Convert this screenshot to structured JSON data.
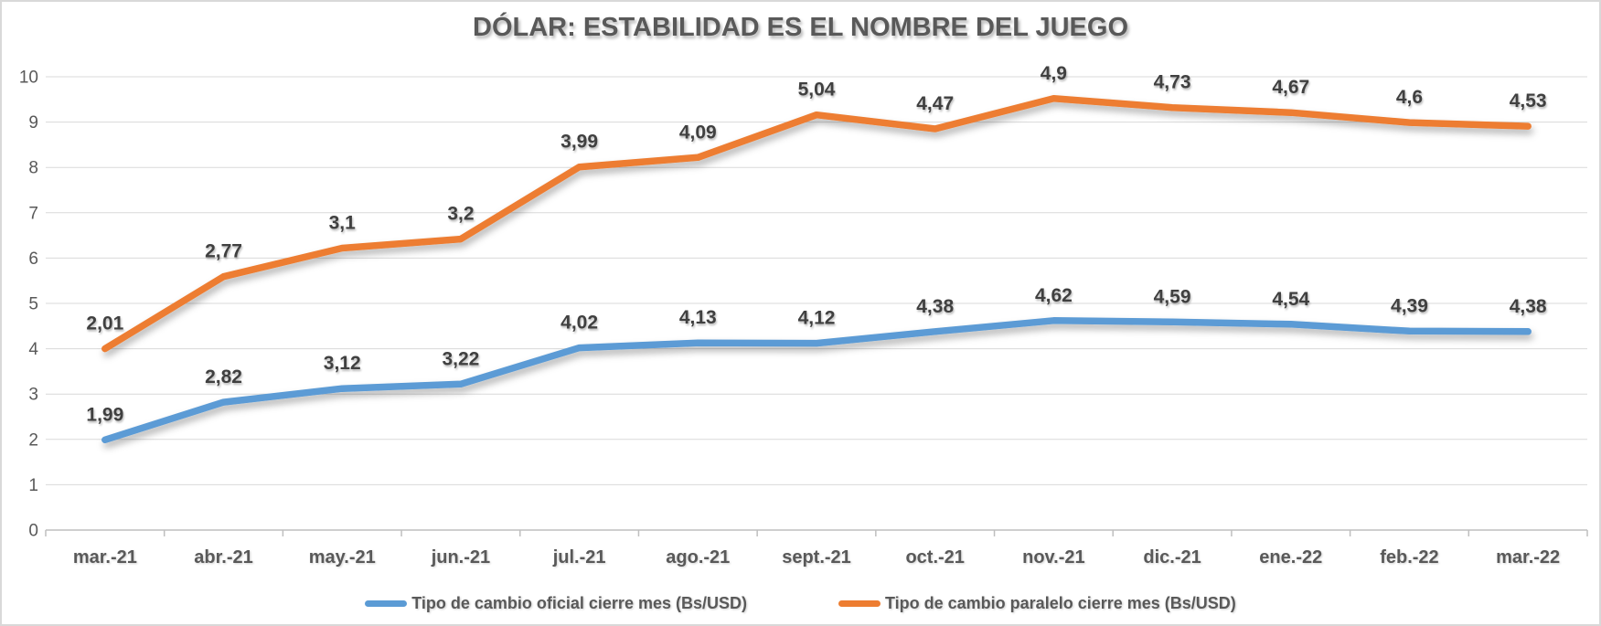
{
  "title": "DÓLAR: ESTABILIDAD ES EL NOMBRE DEL JUEGO",
  "chart_data": {
    "type": "line",
    "stacked": true,
    "title": "DÓLAR: ESTABILIDAD ES EL NOMBRE DEL JUEGO",
    "categories": [
      "mar.-21",
      "abr.-21",
      "may.-21",
      "jun.-21",
      "jul.-21",
      "ago.-21",
      "sept.-21",
      "oct.-21",
      "nov.-21",
      "dic.-21",
      "ene.-22",
      "feb.-22",
      "mar.-22"
    ],
    "y_axis": {
      "min": 0,
      "max": 10,
      "step": 1,
      "tick_labels": [
        "0",
        "1",
        "2",
        "3",
        "4",
        "5",
        "6",
        "7",
        "8",
        "9",
        "10"
      ]
    },
    "series": [
      {
        "name": "Tipo de cambio oficial cierre mes (Bs/USD)",
        "color": "#5B9BD5",
        "values": [
          1.99,
          2.82,
          3.12,
          3.22,
          4.02,
          4.13,
          4.12,
          4.38,
          4.62,
          4.59,
          4.54,
          4.39,
          4.38
        ],
        "labels": [
          "1,99",
          "2,82",
          "3,12",
          "3,22",
          "4,02",
          "4,13",
          "4,12",
          "4,38",
          "4,62",
          "4,59",
          "4,54",
          "4,39",
          "4,38"
        ]
      },
      {
        "name": "Tipo de cambio paralelo cierre mes (Bs/USD)",
        "color": "#ED7D31",
        "values": [
          2.01,
          2.77,
          3.1,
          3.2,
          3.99,
          4.09,
          5.04,
          4.47,
          4.9,
          4.73,
          4.67,
          4.6,
          4.53
        ],
        "labels": [
          "2,01",
          "2,77",
          "3,1",
          "3,2",
          "3,99",
          "4,09",
          "5,04",
          "4,47",
          "4,9",
          "4,73",
          "4,67",
          "4,6",
          "4,53"
        ]
      }
    ],
    "legend_position": "bottom",
    "grid": true
  },
  "style": {
    "title_color": "#595959",
    "data_label_color": "#404040",
    "axis_label_color": "#595959",
    "gridline_color": "#D9D9D9",
    "axis_line_color": "#BFBFBF",
    "border_color": "#D9D9D9",
    "background": "#FFFFFF"
  }
}
